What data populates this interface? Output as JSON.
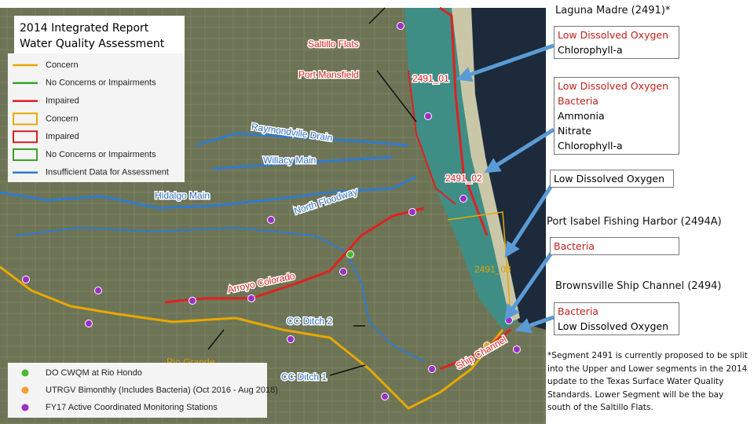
{
  "map": {
    "title": [
      "2014 Integrated Report",
      "Water Quality Assessment"
    ],
    "legend": [
      "Concern",
      "No Concerns or Impairments",
      "Impaired",
      "Concern",
      "Impaired",
      "No Concerns or Impairments",
      "Insufficient Data for Assessment"
    ],
    "labels": [
      "Saltillo Flats",
      "Port Mansfield",
      "2491_01",
      "Raymondville Drain",
      "Willacy Main",
      "Hidalgo Main",
      "North Floodway",
      "2491_02",
      "Arroyo Colorado",
      "2491_03",
      "CC Ditch 2",
      "Rio Grande",
      "CC Ditch 1",
      "Ship Channel"
    ],
    "stations": [
      "DO CWQM  at Rio Hondo",
      "UTRGV Bimonthly (Includes Bacteria) (Oct 2016 - Aug 2018)",
      "FY17 Active Coordinated Monitoring Stations"
    ]
  },
  "segments": [
    {
      "name": "Laguna Madre (2491)*",
      "boxes": [
        [
          "Low Dissolved Oxygen",
          "Chlorophyll-a"
        ],
        [
          "Low Dissolved Oxygen",
          "Bacteria",
          "Ammonia",
          "Nitrate",
          "Chlorophyll-a"
        ],
        [
          "Low Dissolved Oxygen"
        ]
      ]
    },
    {
      "name": "Port Isabel Fishing Harbor (2494A)",
      "boxes": [
        [
          "Bacteria"
        ]
      ]
    },
    {
      "name": "Brownsville Ship Channel (2494)",
      "boxes": [
        [
          "Bacteria",
          "Low Dissolved Oxygen"
        ]
      ]
    }
  ],
  "footnote": "*Segment 2491 is currently proposed to be split into the Upper and Lower segments in the 2014 update to the Texas Surface Water Quality Standards. Lower Segment will be the bay south of the Saltillo Flats."
}
